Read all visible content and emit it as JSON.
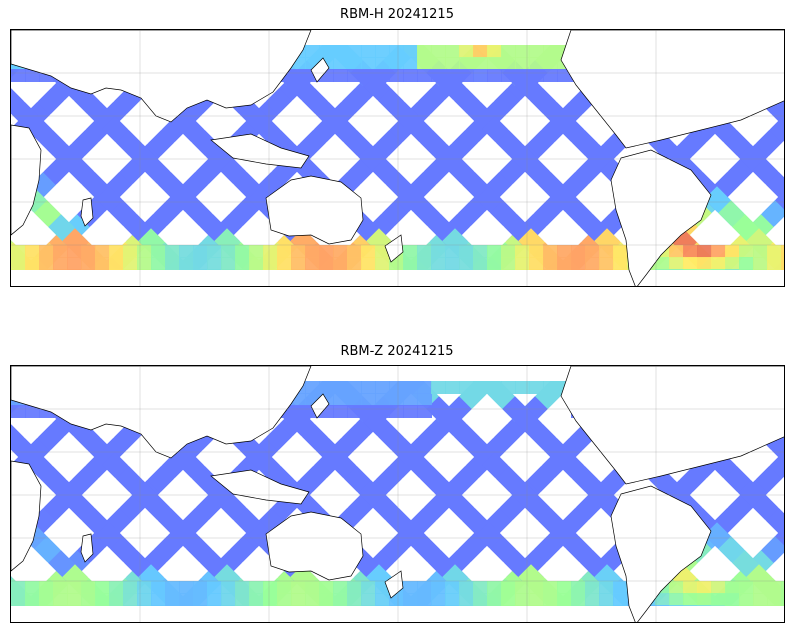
{
  "chart_data": [
    {
      "type": "heatmap",
      "title": "RBM-H 20241215",
      "projection": "equirectangular, ocean swath map, centered on Pacific",
      "grid": true,
      "colormap": "jet",
      "colormap_alpha": 0.6,
      "swath_pattern": "diagonal satellite swaths forming diamond lattice",
      "colors": {
        "low": "#6666ff",
        "mid_low": "#66ccff",
        "mid": "#99ff99",
        "mid_high": "#ffcc66",
        "high": "#cc3333"
      },
      "high_value_regions": [
        "south Pacific west of South America",
        "southern Atlantic off Africa",
        "southern ocean band",
        "north Pacific near Japan/Kamchatka"
      ]
    },
    {
      "type": "heatmap",
      "title": "RBM-Z 20241215",
      "projection": "equirectangular, ocean swath map, centered on Pacific",
      "grid": true,
      "colormap": "jet",
      "colormap_alpha": 0.6,
      "swath_pattern": "diagonal satellite swaths forming diamond lattice",
      "colors": {
        "low": "#6666ff",
        "mid_low": "#66ccff",
        "mid": "#99ff99",
        "mid_high": "#ffcc66",
        "high": "#cc3333"
      },
      "high_value_regions": [
        "south Pacific west of South America (moderate)",
        "southern ocean band (moderate)"
      ]
    }
  ]
}
